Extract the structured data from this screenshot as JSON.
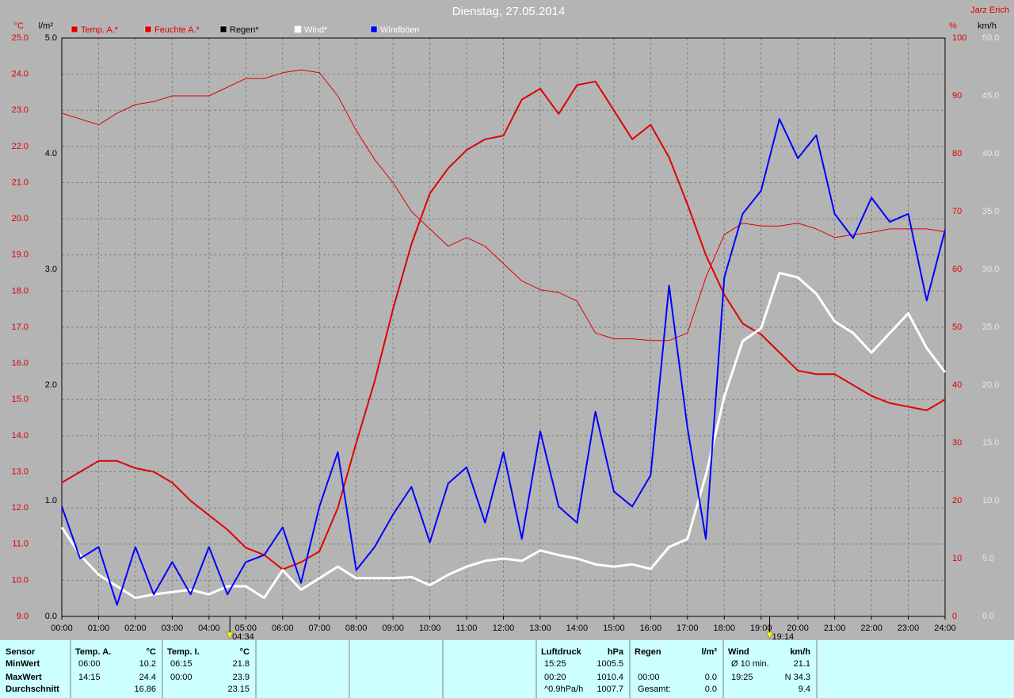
{
  "chart_data": {
    "type": "line",
    "title": "Dienstag, 27.05.2014",
    "author": "Jarz Erich",
    "axis_units": {
      "y": "°C",
      "y3": "l/m²",
      "y2": "%",
      "y4": "km/h"
    },
    "x": [
      0,
      0.5,
      1,
      1.5,
      2,
      2.5,
      3,
      3.5,
      4,
      4.5,
      5,
      5.5,
      6,
      6.5,
      7,
      7.5,
      8,
      8.5,
      9,
      9.5,
      10,
      10.5,
      11,
      11.5,
      12,
      12.5,
      13,
      13.5,
      14,
      14.5,
      15,
      15.5,
      16,
      16.5,
      17,
      17.5,
      18,
      18.5,
      19,
      19.5,
      20,
      20.5,
      21,
      21.5,
      22,
      22.5,
      23,
      23.5,
      24
    ],
    "xlim": [
      0,
      24
    ],
    "xticks": [
      {
        "value": 0,
        "label": "00:00"
      },
      {
        "value": 1,
        "label": "01:00"
      },
      {
        "value": 2,
        "label": "02:00"
      },
      {
        "value": 3,
        "label": "03:00"
      },
      {
        "value": 4,
        "label": "04:00"
      },
      {
        "value": 5,
        "label": "05:00"
      },
      {
        "value": 6,
        "label": "06:00"
      },
      {
        "value": 7,
        "label": "07:00"
      },
      {
        "value": 8,
        "label": "08:00"
      },
      {
        "value": 9,
        "label": "09:00"
      },
      {
        "value": 10,
        "label": "10:00"
      },
      {
        "value": 11,
        "label": "11:00"
      },
      {
        "value": 12,
        "label": "12:00"
      },
      {
        "value": 13,
        "label": "13:00"
      },
      {
        "value": 14,
        "label": "14:00"
      },
      {
        "value": 15,
        "label": "15:00"
      },
      {
        "value": 16,
        "label": "16:00"
      },
      {
        "value": 17,
        "label": "17:00"
      },
      {
        "value": 18,
        "label": "18:00"
      },
      {
        "value": 19,
        "label": "19:00"
      },
      {
        "value": 20,
        "label": "20:00"
      },
      {
        "value": 21,
        "label": "21:00"
      },
      {
        "value": 22,
        "label": "22:00"
      },
      {
        "value": 23,
        "label": "23:00"
      },
      {
        "value": 24,
        "label": "24:00"
      }
    ],
    "ylim": [
      9,
      25
    ],
    "yticks": [
      {
        "value": 9,
        "label": "9.0"
      },
      {
        "value": 10,
        "label": "10.0"
      },
      {
        "value": 11,
        "label": "11.0"
      },
      {
        "value": 12,
        "label": "12.0"
      },
      {
        "value": 13,
        "label": "13.0"
      },
      {
        "value": 14,
        "label": "14.0"
      },
      {
        "value": 15,
        "label": "15.0"
      },
      {
        "value": 16,
        "label": "16.0"
      },
      {
        "value": 17,
        "label": "17.0"
      },
      {
        "value": 18,
        "label": "18.0"
      },
      {
        "value": 19,
        "label": "19.0"
      },
      {
        "value": 20,
        "label": "20.0"
      },
      {
        "value": 21,
        "label": "21.0"
      },
      {
        "value": 22,
        "label": "22.0"
      },
      {
        "value": 23,
        "label": "23.0"
      },
      {
        "value": 24,
        "label": "24.0"
      },
      {
        "value": 25,
        "label": "25.0"
      }
    ],
    "y3lim": [
      0,
      5
    ],
    "y3ticks": [
      {
        "value": 0,
        "label": "0.0"
      },
      {
        "value": 1,
        "label": "1.0"
      },
      {
        "value": 2,
        "label": "2.0"
      },
      {
        "value": 3,
        "label": "3.0"
      },
      {
        "value": 4,
        "label": "4.0"
      },
      {
        "value": 5,
        "label": "5.0"
      }
    ],
    "y2lim": [
      0,
      100
    ],
    "y2ticks": [
      0,
      10,
      20,
      30,
      40,
      50,
      60,
      70,
      80,
      90,
      100
    ],
    "y4lim": [
      0,
      50
    ],
    "y4ticks": [
      {
        "value": 0,
        "label": "0.0"
      },
      {
        "value": 5,
        "label": "5.0"
      },
      {
        "value": 10,
        "label": "10.0"
      },
      {
        "value": 15,
        "label": "15.0"
      },
      {
        "value": 20,
        "label": "20.0"
      },
      {
        "value": 25,
        "label": "25.0"
      },
      {
        "value": 30,
        "label": "30.0"
      },
      {
        "value": 35,
        "label": "35.0"
      },
      {
        "value": 40,
        "label": "40.0"
      },
      {
        "value": 45,
        "label": "45.0"
      },
      {
        "value": 50,
        "label": "50.0"
      }
    ],
    "grid": true,
    "sun_markers": [
      {
        "value": 4.567,
        "label": "04:34"
      },
      {
        "value": 19.233,
        "label": "19:14"
      }
    ],
    "series": [
      {
        "name": "Temp. A.*",
        "color": "#e00000",
        "axis": "y",
        "width": 2,
        "values": [
          12.7,
          13.0,
          13.3,
          13.3,
          13.1,
          13.0,
          12.7,
          12.2,
          11.8,
          11.4,
          10.9,
          10.7,
          10.3,
          10.5,
          10.8,
          12.0,
          13.8,
          15.5,
          17.5,
          19.3,
          20.7,
          21.4,
          21.9,
          22.2,
          22.3,
          23.3,
          23.6,
          22.9,
          23.7,
          23.8,
          23.0,
          22.2,
          22.6,
          21.7,
          20.4,
          19.0,
          17.9,
          17.1,
          16.8,
          16.3,
          15.8,
          15.7,
          15.7,
          15.4,
          15.1,
          14.9,
          14.8,
          14.7,
          15.0
        ]
      },
      {
        "name": "Feuchte A.*",
        "color": "#e00000",
        "axis": "y2",
        "width": 1,
        "values": [
          87,
          86,
          85,
          87,
          88.5,
          89,
          90,
          90,
          90,
          91.5,
          93,
          93,
          94,
          94.5,
          94,
          90,
          84,
          79,
          75,
          70,
          67,
          64,
          65.5,
          64,
          61,
          58,
          56.5,
          56,
          54.5,
          49,
          48,
          48,
          47.7,
          47.7,
          49,
          58.6,
          66,
          68,
          67.5,
          67.5,
          68,
          67,
          65.5,
          66,
          66.4,
          67,
          67,
          67,
          66.5
        ]
      },
      {
        "name": "Regen*",
        "color": "#000000",
        "axis": "y3",
        "width": 1,
        "values": [
          0,
          0,
          0,
          0,
          0,
          0,
          0,
          0,
          0,
          0,
          0,
          0,
          0,
          0,
          0,
          0,
          0,
          0,
          0,
          0,
          0,
          0,
          0,
          0,
          0,
          0,
          0,
          0,
          0,
          0,
          0,
          0,
          0,
          0,
          0,
          0,
          0,
          0,
          0,
          0,
          0,
          0,
          0,
          0,
          0,
          0,
          0,
          0,
          0
        ]
      },
      {
        "name": "Wind*",
        "color": "#ffffff",
        "axis": "y4",
        "width": 3,
        "values": [
          7.7,
          5.3,
          3.6,
          2.6,
          1.6,
          1.9,
          2.1,
          2.3,
          1.9,
          2.6,
          2.6,
          1.6,
          4.0,
          2.3,
          3.3,
          4.3,
          3.3,
          3.3,
          3.3,
          3.4,
          2.7,
          3.6,
          4.3,
          4.8,
          5.0,
          4.8,
          5.7,
          5.3,
          5.0,
          4.5,
          4.3,
          4.5,
          4.1,
          6.0,
          6.7,
          12.2,
          19.0,
          23.8,
          24.9,
          29.7,
          29.3,
          27.9,
          25.5,
          24.5,
          22.8,
          24.5,
          26.2,
          23.2,
          21.1
        ]
      },
      {
        "name": "Windböen",
        "color": "#0000ff",
        "axis": "y4",
        "width": 2,
        "values": [
          9.5,
          5.0,
          6.0,
          1.0,
          6.0,
          1.9,
          4.7,
          1.9,
          6.0,
          1.9,
          4.7,
          5.3,
          7.7,
          2.9,
          9.5,
          14.2,
          4.0,
          6.0,
          8.8,
          11.2,
          6.4,
          11.5,
          12.9,
          8.1,
          14.2,
          6.7,
          16.0,
          9.5,
          8.1,
          17.7,
          10.8,
          9.5,
          12.2,
          28.6,
          16.3,
          6.7,
          29.3,
          34.8,
          36.8,
          43.0,
          39.6,
          41.6,
          34.8,
          32.7,
          36.2,
          34.1,
          34.8,
          27.3,
          33.4
        ]
      }
    ]
  },
  "table": {
    "sensor": {
      "title": "Sensor",
      "rows": [
        "MinWert",
        "MaxWert",
        "Durchschnitt"
      ]
    },
    "blocks": [
      {
        "title": "Temp. A.",
        "unit": "°C",
        "rows": [
          [
            "06:00",
            "10.2"
          ],
          [
            "14:15",
            "24.4"
          ],
          [
            null,
            "16.86"
          ]
        ]
      },
      {
        "title": "Temp. I.",
        "unit": "°C",
        "rows": [
          [
            "06:15",
            "21.8"
          ],
          [
            "00:00",
            "23.9"
          ],
          [
            null,
            "23.15"
          ]
        ]
      },
      {
        "title": "Luftdruck",
        "unit": "hPa",
        "rows": [
          [
            "15:25",
            "1005.5"
          ],
          [
            "00:20",
            "1010.4"
          ],
          [
            "^0.9hPa/h",
            "1007.7"
          ]
        ]
      },
      {
        "title": "Regen",
        "unit": "l/m²",
        "rows": [
          [
            null,
            null
          ],
          [
            "00:00",
            "0.0"
          ],
          [
            "Gesamt:",
            "0.0"
          ]
        ]
      },
      {
        "title": "Wind",
        "unit": "km/h",
        "rows": [
          [
            "Ø 10 min.",
            "21.1"
          ],
          [
            "19:25",
            "N 34.3"
          ],
          [
            null,
            "9.4"
          ]
        ]
      }
    ]
  }
}
